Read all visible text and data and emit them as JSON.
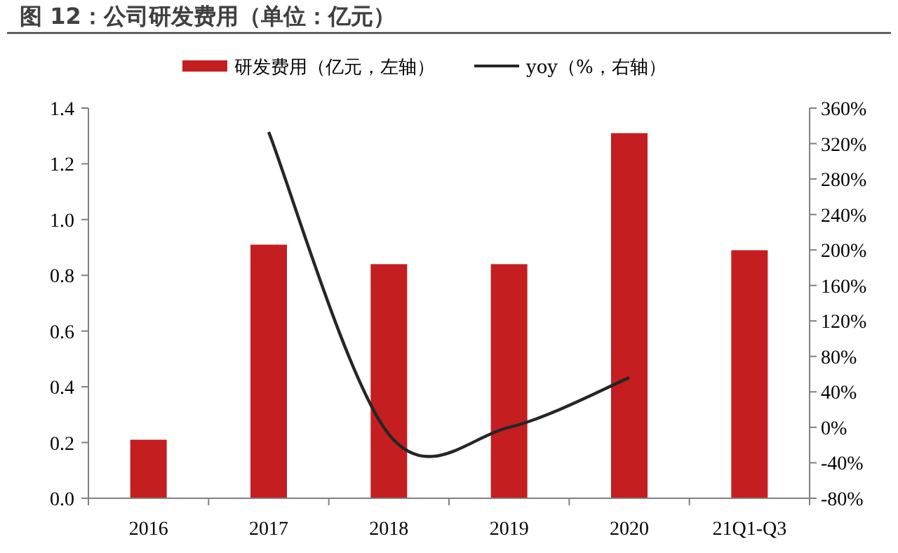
{
  "chart_data": {
    "type": "bar",
    "title": "图 12：公司研发费用（单位：亿元）",
    "categories": [
      "2016",
      "2017",
      "2018",
      "2019",
      "2020",
      "21Q1-Q3"
    ],
    "series": [
      {
        "name": "研发费用（亿元，左轴）",
        "color": "#c41e20",
        "values": [
          0.21,
          0.91,
          0.84,
          0.84,
          1.31,
          0.89
        ]
      },
      {
        "name": "yoy（%，右轴）",
        "type": "line",
        "axis": "y2",
        "color": "#262626",
        "values": [
          null,
          333,
          -8,
          0,
          56,
          null
        ]
      }
    ],
    "ylim": [
      0,
      1.4
    ],
    "yticks": [
      {
        "value": 0,
        "label": "0.0"
      },
      0.2,
      0.4,
      0.6,
      0.8,
      {
        "value": 1,
        "label": "1.0"
      },
      1.2,
      1.4
    ],
    "y2lim": [
      -80,
      360
    ],
    "y2ticks": [
      {
        "value": -80,
        "label": "-80%"
      },
      {
        "value": -40,
        "label": "-40%"
      },
      {
        "value": 0,
        "label": "0%"
      },
      {
        "value": 40,
        "label": "40%"
      },
      {
        "value": 80,
        "label": "80%"
      },
      {
        "value": 120,
        "label": "120%"
      },
      {
        "value": 160,
        "label": "160%"
      },
      {
        "value": 200,
        "label": "200%"
      },
      {
        "value": 240,
        "label": "240%"
      },
      {
        "value": 280,
        "label": "280%"
      },
      {
        "value": 320,
        "label": "320%"
      },
      {
        "value": 360,
        "label": "360%"
      }
    ],
    "legend": "top",
    "marker": "none"
  }
}
